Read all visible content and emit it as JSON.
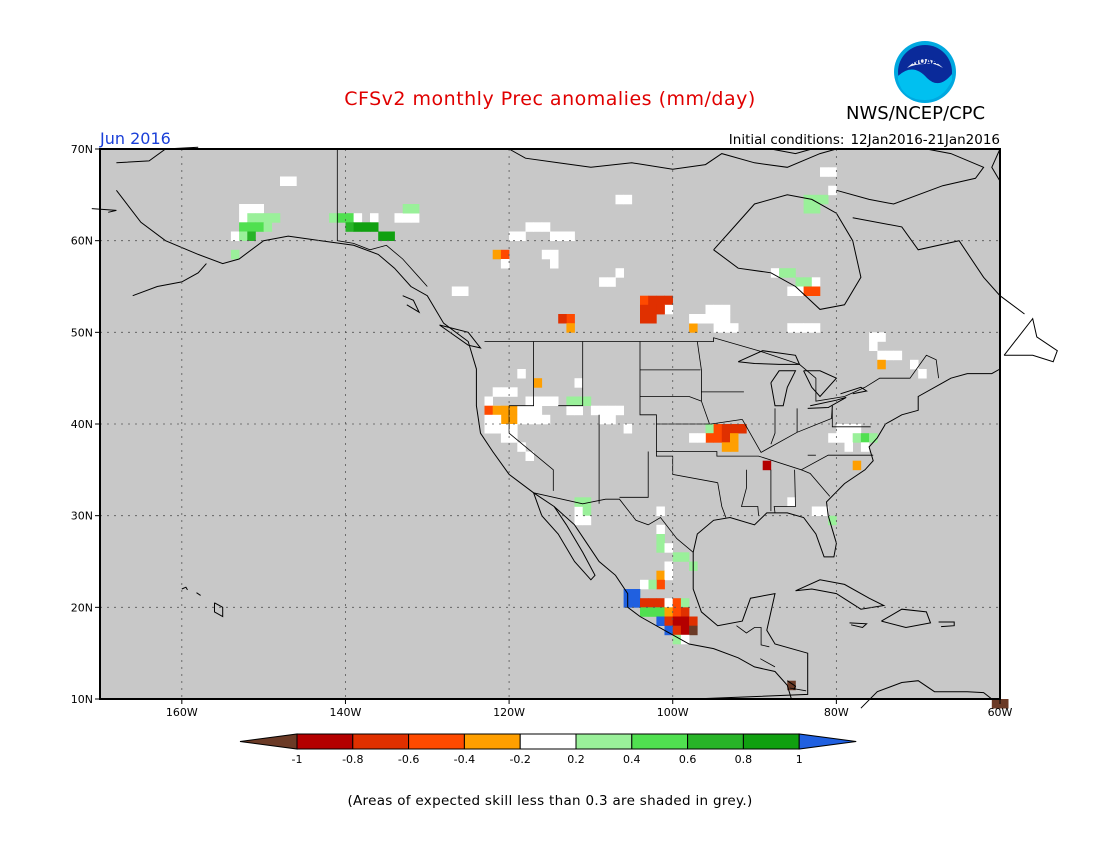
{
  "header": {
    "title": "CFSv2 monthly Prec anomalies (mm/day)",
    "org": "NWS/NCEP/CPC",
    "logo_text": "NOAA",
    "month": "Jun 2016",
    "ic_label": "Initial conditions:",
    "ic_dates": "12Jan2016-21Jan2016"
  },
  "map": {
    "lon_range": [
      -170,
      -60
    ],
    "lat_range": [
      10,
      70
    ],
    "lat_ticks": [
      "10N",
      "20N",
      "30N",
      "40N",
      "50N",
      "60N",
      "70N"
    ],
    "lon_ticks": [
      "160W",
      "140W",
      "120W",
      "100W",
      "80W",
      "60W"
    ],
    "background": "#c8c8c8"
  },
  "colorbar": {
    "ticks": [
      "-1",
      "-0.8",
      "-0.6",
      "-0.4",
      "-0.2",
      "0.2",
      "0.4",
      "0.6",
      "0.8",
      "1"
    ],
    "colors": [
      "#6b3a26",
      "#b40000",
      "#e03000",
      "#ff4a00",
      "#ff9f00",
      "#ffffff",
      "#9af09a",
      "#50e050",
      "#28b428",
      "#10a010",
      "#2060e0"
    ]
  },
  "footnote": "(Areas of expected skill less than 0.3 are shaded in grey.)"
}
